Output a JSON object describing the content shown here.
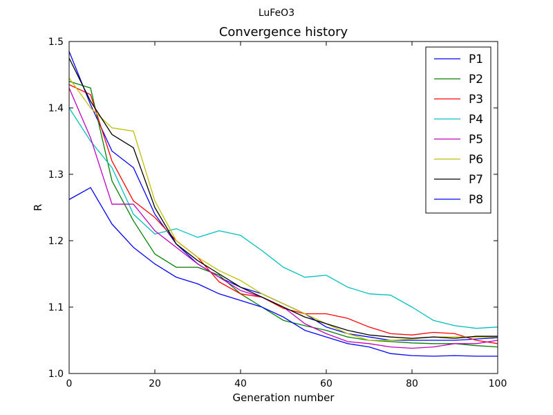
{
  "figure": {
    "suptitle": "LuFeO3"
  },
  "chart_data": {
    "type": "line",
    "title": "Convergence history",
    "xlabel": "Generation number",
    "ylabel": "R",
    "xlim": [
      0,
      100
    ],
    "ylim": [
      1.0,
      1.5
    ],
    "xticks": [
      "0",
      "20",
      "40",
      "60",
      "80",
      "100"
    ],
    "yticks": [
      "1.0",
      "1.1",
      "1.2",
      "1.3",
      "1.4",
      "1.5"
    ],
    "grid": false,
    "legend_position": "top-right",
    "x": [
      0,
      5,
      10,
      15,
      20,
      25,
      30,
      35,
      40,
      45,
      50,
      55,
      60,
      65,
      70,
      75,
      80,
      85,
      90,
      95,
      100
    ],
    "series": [
      {
        "name": "P1",
        "color": "#0000ff",
        "values": [
          1.485,
          1.405,
          1.335,
          1.31,
          1.24,
          1.195,
          1.165,
          1.145,
          1.13,
          1.12,
          1.105,
          1.09,
          1.07,
          1.06,
          1.055,
          1.05,
          1.05,
          1.05,
          1.05,
          1.052,
          1.054
        ]
      },
      {
        "name": "P2",
        "color": "#008000",
        "values": [
          1.44,
          1.43,
          1.29,
          1.23,
          1.18,
          1.16,
          1.16,
          1.148,
          1.12,
          1.1,
          1.08,
          1.072,
          1.065,
          1.055,
          1.05,
          1.048,
          1.046,
          1.045,
          1.045,
          1.042,
          1.04
        ]
      },
      {
        "name": "P3",
        "color": "#ff0000",
        "values": [
          1.435,
          1.42,
          1.32,
          1.26,
          1.235,
          1.2,
          1.175,
          1.138,
          1.12,
          1.115,
          1.098,
          1.09,
          1.09,
          1.083,
          1.07,
          1.06,
          1.058,
          1.062,
          1.06,
          1.05,
          1.045
        ]
      },
      {
        "name": "P4",
        "color": "#00bfbf",
        "values": [
          1.4,
          1.35,
          1.31,
          1.24,
          1.21,
          1.218,
          1.205,
          1.215,
          1.208,
          1.185,
          1.16,
          1.145,
          1.148,
          1.13,
          1.12,
          1.118,
          1.1,
          1.08,
          1.072,
          1.068,
          1.07
        ]
      },
      {
        "name": "P5",
        "color": "#bf00bf",
        "values": [
          1.43,
          1.355,
          1.255,
          1.255,
          1.215,
          1.19,
          1.165,
          1.145,
          1.125,
          1.115,
          1.1,
          1.075,
          1.06,
          1.048,
          1.045,
          1.04,
          1.038,
          1.04,
          1.045,
          1.045,
          1.05
        ]
      },
      {
        "name": "P6",
        "color": "#bfbf00",
        "values": [
          1.445,
          1.4,
          1.37,
          1.365,
          1.26,
          1.2,
          1.175,
          1.155,
          1.14,
          1.12,
          1.105,
          1.09,
          1.075,
          1.06,
          1.05,
          1.05,
          1.052,
          1.055,
          1.055,
          1.055,
          1.055
        ]
      },
      {
        "name": "P7",
        "color": "#000000",
        "values": [
          1.475,
          1.41,
          1.36,
          1.34,
          1.25,
          1.195,
          1.17,
          1.15,
          1.13,
          1.115,
          1.1,
          1.085,
          1.075,
          1.065,
          1.058,
          1.055,
          1.053,
          1.055,
          1.053,
          1.056,
          1.056
        ]
      },
      {
        "name": "P8",
        "color": "#0000ff",
        "values": [
          1.262,
          1.28,
          1.225,
          1.19,
          1.165,
          1.145,
          1.135,
          1.12,
          1.11,
          1.1,
          1.085,
          1.065,
          1.055,
          1.045,
          1.04,
          1.03,
          1.027,
          1.026,
          1.027,
          1.026,
          1.026
        ]
      }
    ]
  }
}
